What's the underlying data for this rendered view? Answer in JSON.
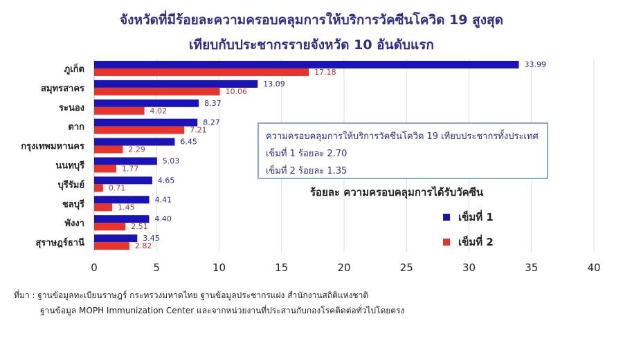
{
  "title_line1": "จังหวัดที่มีร้อยละความครอบคลุมการให้บริการวัคซีนโควิด 19 สูงสุด",
  "title_line2": "เทียบกับประชากรรายจังหวัด 10 อันดับแรก",
  "chart_data": {
    "type": "bar",
    "orientation": "horizontal",
    "categories": [
      "ภูเก็ต",
      "สมุทรสาคร",
      "ระนอง",
      "ตาก",
      "กรุงเทพมหานคร",
      "นนทบุรี",
      "บุรีรัมย์",
      "ชลบุรี",
      "พังงา",
      "สุราษฎร์ธานี"
    ],
    "series": [
      {
        "name": "เข็มที่ 1",
        "values": [
          33.99,
          13.09,
          8.37,
          8.27,
          6.45,
          5.03,
          4.65,
          4.41,
          4.4,
          3.45
        ],
        "labels": [
          "33.99",
          "13.09",
          "8.37",
          "8.27",
          "6.45",
          "5.03",
          "4.65",
          "4.41",
          "4.40",
          "3.45"
        ],
        "color": "#1a13b5"
      },
      {
        "name": "เข็มที่ 2",
        "values": [
          17.18,
          10.06,
          4.02,
          7.21,
          2.29,
          1.77,
          0.71,
          1.45,
          2.51,
          2.82
        ],
        "labels": [
          "17.18",
          "10.06",
          "4.02",
          "7.21",
          "2.29",
          "1.77",
          "0.71",
          "1.45",
          "2.51",
          "2.82"
        ],
        "color": "#e8352c"
      }
    ],
    "xlim": [
      0,
      40
    ],
    "xticks": [
      "0",
      "5",
      "10",
      "15",
      "20",
      "25",
      "30",
      "35",
      "40"
    ],
    "grid": true
  },
  "note": {
    "title": "ความครอบคลุมการให้บริการวัคซีนโควิด 19 เทียบประชากรทั้งประเทศ",
    "dose1": "เข็มที่ 1 ร้อยละ 2.70",
    "dose2": "เข็มที่ 2 ร้อยละ 1.35"
  },
  "legend": {
    "title": "ร้อยละ ความครอบคลุมการได้รับวัคซีน",
    "dose1": "เข็มที่ 1",
    "dose2": "เข็มที่ 2"
  },
  "source": {
    "line1": "ที่มา : ฐานข้อมูลทะเบียนราษฎร์ กระทรวงมหาดไทย ฐานข้อมูลประชากรแฝง สำนักงานสถิติแห่งชาติ",
    "line2": "ฐานข้อมูล MOPH  Immunization Center  และจากหน่วยงานที่ประสานกับกองโรคติดต่อทั่วไปโดยตรง"
  }
}
